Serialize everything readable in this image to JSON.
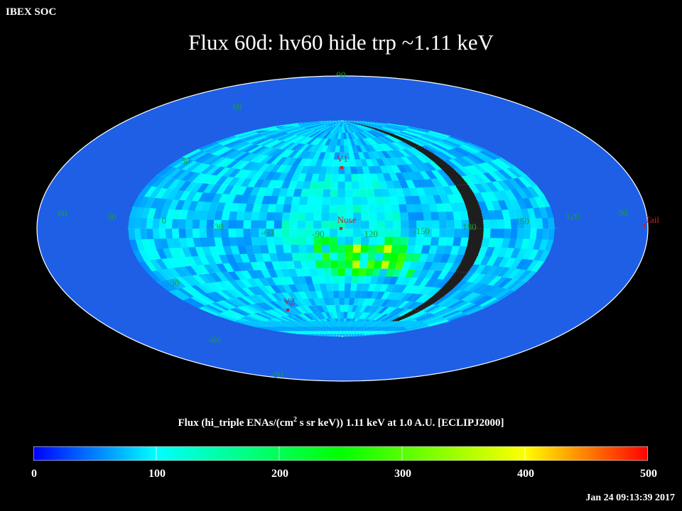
{
  "header": {
    "label": "IBEX SOC"
  },
  "chart_data": {
    "type": "heatmap",
    "projection": "Mollweide / Hammer-Aitoff all-sky",
    "title": "Flux   60d: hv60 hide trp ~1.11 keV",
    "colorbar_label_parts": [
      "Flux (hi_triple ENAs/(cm",
      "2",
      " s sr keV))  1.11 keV at 1.0 A.U. [ECLIPJ2000]"
    ],
    "value_range": [
      0,
      500
    ],
    "colorbar_ticks": [
      "0",
      "100",
      "200",
      "300",
      "400",
      "500"
    ],
    "longitude_labels": [
      "60",
      "30",
      "0",
      "-30",
      "-60",
      "-90",
      "-120",
      "-150",
      "180",
      "150",
      "120",
      "90"
    ],
    "latitude_labels": [
      "60",
      "30",
      "-30",
      "-60",
      "90",
      "-90"
    ],
    "markers": [
      {
        "name": "Nose",
        "lon": -100,
        "lat": 0
      },
      {
        "name": "V1",
        "lon": -100,
        "lat": 34
      },
      {
        "name": "V2",
        "lon": -110,
        "lat": -32
      },
      {
        "name": "Tail",
        "lon": 80,
        "lat": 0
      }
    ],
    "no_data_region": "black band around ecliptic longitude 150-165 (unobserved)",
    "typical_flux": "50-130",
    "peak_flux": "~250 near lon -150 to -90, lat -10 to -30"
  },
  "footer": {
    "timestamp": "Jan 24 09:13:39 2017"
  },
  "colors": {
    "background": "#000000",
    "marker": "#c0282a",
    "grid_label": "#1aa038",
    "map_outline": "#ffffff"
  }
}
